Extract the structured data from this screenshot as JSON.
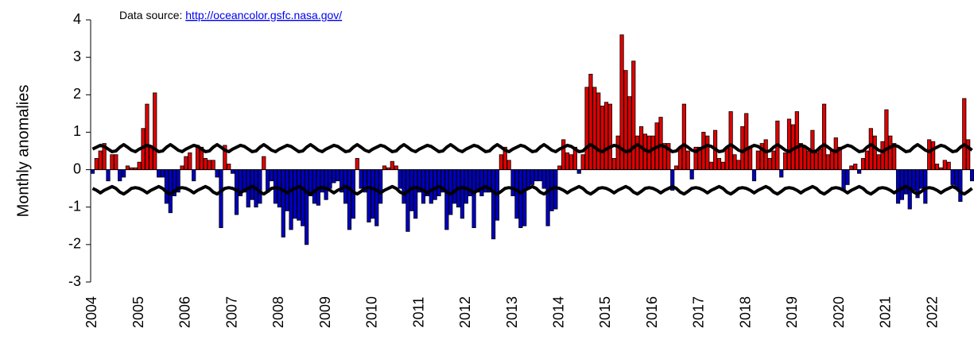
{
  "chart_data": {
    "type": "bar",
    "ylabel": "Monthly anomalies",
    "annotation": "Data source:",
    "annotation_link": "http://oceancolor.gsfc.nasa.gov/",
    "ylim": [
      -3,
      4
    ],
    "yticks": [
      -3,
      -2,
      -1,
      0,
      1,
      2,
      3,
      4
    ],
    "positive_color": "#e00000",
    "negative_color": "#0000c0",
    "categories": [
      "2004",
      null,
      null,
      null,
      null,
      null,
      null,
      null,
      null,
      null,
      null,
      null,
      "2005",
      null,
      null,
      null,
      null,
      null,
      null,
      null,
      null,
      null,
      null,
      null,
      "2006",
      null,
      null,
      null,
      null,
      null,
      null,
      null,
      null,
      null,
      null,
      null,
      "2007",
      null,
      null,
      null,
      null,
      null,
      null,
      null,
      null,
      null,
      null,
      null,
      "2008",
      null,
      null,
      null,
      null,
      null,
      null,
      null,
      null,
      null,
      null,
      null,
      "2009",
      null,
      null,
      null,
      null,
      null,
      null,
      null,
      null,
      null,
      null,
      null,
      "2010",
      null,
      null,
      null,
      null,
      null,
      null,
      null,
      null,
      null,
      null,
      null,
      "2011",
      null,
      null,
      null,
      null,
      null,
      null,
      null,
      null,
      null,
      null,
      null,
      "2012",
      null,
      null,
      null,
      null,
      null,
      null,
      null,
      null,
      null,
      null,
      null,
      "2013",
      null,
      null,
      null,
      null,
      null,
      null,
      null,
      null,
      null,
      null,
      null,
      "2014",
      null,
      null,
      null,
      null,
      null,
      null,
      null,
      null,
      null,
      null,
      null,
      "2015",
      null,
      null,
      null,
      null,
      null,
      null,
      null,
      null,
      null,
      null,
      null,
      "2016",
      null,
      null,
      null,
      null,
      null,
      null,
      null,
      null,
      null,
      null,
      null,
      "2017",
      null,
      null,
      null,
      null,
      null,
      null,
      null,
      null,
      null,
      null,
      null,
      "2018",
      null,
      null,
      null,
      null,
      null,
      null,
      null,
      null,
      null,
      null,
      null,
      "2019",
      null,
      null,
      null,
      null,
      null,
      null,
      null,
      null,
      null,
      null,
      null,
      "2020",
      null,
      null,
      null,
      null,
      null,
      null,
      null,
      null,
      null,
      null,
      null,
      "2021",
      null,
      null,
      null,
      null,
      null,
      null,
      null,
      null,
      null,
      null,
      null,
      "2022",
      null,
      null,
      null,
      null,
      null,
      null,
      null,
      null,
      null,
      null
    ],
    "values": [
      -0.1,
      0.3,
      0.5,
      0.7,
      -0.3,
      0.4,
      0.4,
      -0.3,
      -0.2,
      0.1,
      0.05,
      0.05,
      0.2,
      1.1,
      1.75,
      0.6,
      2.05,
      -0.2,
      -0.2,
      -0.9,
      -1.15,
      -0.7,
      -0.6,
      0.1,
      0.35,
      0.45,
      -0.3,
      0.65,
      0.6,
      0.3,
      0.25,
      0.25,
      -0.2,
      -1.55,
      0.65,
      0.15,
      -0.1,
      -1.2,
      -0.7,
      -0.6,
      -1.0,
      -0.8,
      -1.0,
      -0.9,
      0.35,
      -0.6,
      -0.3,
      -0.9,
      -1.0,
      -1.8,
      -1.1,
      -1.6,
      -1.3,
      -1.35,
      -1.5,
      -2.0,
      -0.7,
      -0.9,
      -0.95,
      -0.6,
      -0.8,
      -0.5,
      -0.35,
      -0.3,
      -0.6,
      -0.9,
      -1.6,
      -1.3,
      0.3,
      -0.5,
      -0.6,
      -1.4,
      -1.3,
      -1.5,
      -0.9,
      0.1,
      0.05,
      0.22,
      0.1,
      -0.5,
      -0.9,
      -1.65,
      -1.1,
      -1.3,
      -0.6,
      -0.9,
      -0.7,
      -0.9,
      -0.8,
      -0.7,
      -0.6,
      -1.6,
      -1.2,
      -0.9,
      -1.0,
      -1.3,
      -0.9,
      -0.7,
      -1.55,
      -0.6,
      -0.7,
      -0.6,
      -0.6,
      -1.85,
      -1.35,
      0.4,
      0.6,
      0.25,
      -0.7,
      -1.3,
      -1.55,
      -1.5,
      -0.5,
      -0.4,
      -0.3,
      -0.3,
      -0.5,
      -1.5,
      -1.1,
      -1.05,
      0.1,
      0.8,
      0.45,
      0.4,
      0.6,
      -0.1,
      0.4,
      2.2,
      2.55,
      2.2,
      2.05,
      1.7,
      1.8,
      1.75,
      0.3,
      0.9,
      3.6,
      2.65,
      1.95,
      2.9,
      0.9,
      1.15,
      0.95,
      0.9,
      0.9,
      1.25,
      1.4,
      0.7,
      0.7,
      -0.55,
      0.1,
      0.6,
      1.75,
      0.5,
      -0.25,
      0.6,
      0.6,
      1.0,
      0.9,
      0.2,
      1.05,
      0.3,
      0.2,
      0.6,
      1.55,
      0.4,
      0.25,
      1.15,
      1.5,
      0.6,
      -0.3,
      0.5,
      0.7,
      0.8,
      0.3,
      0.5,
      1.3,
      -0.2,
      0.45,
      1.35,
      1.2,
      1.55,
      0.7,
      0.6,
      0.5,
      1.05,
      0.45,
      0.55,
      1.75,
      0.4,
      0.5,
      0.85,
      0.6,
      -0.55,
      -0.4,
      0.1,
      0.15,
      -0.1,
      0.3,
      0.5,
      1.1,
      0.9,
      0.4,
      0.75,
      1.6,
      0.9,
      0.7,
      -0.9,
      -0.8,
      -0.65,
      -1.05,
      -0.55,
      -0.75,
      -0.5,
      -0.9,
      0.8,
      0.75,
      0.15,
      0.05,
      0.25,
      0.2,
      -0.4,
      -0.5,
      -0.85,
      1.9,
      0.8,
      -0.3
    ],
    "lines": [
      {
        "color": "#000000",
        "values": [
          0.55,
          0.6,
          0.65,
          0.62,
          0.55,
          0.48,
          0.5,
          0.6,
          0.67,
          0.6,
          0.52,
          0.48,
          0.55,
          0.6,
          0.65,
          0.62,
          0.55,
          0.48,
          0.5,
          0.6,
          0.67,
          0.6,
          0.52,
          0.48,
          0.55,
          0.6,
          0.65,
          0.62,
          0.55,
          0.48,
          0.5,
          0.6,
          0.67,
          0.6,
          0.52,
          0.48,
          0.55,
          0.6,
          0.65,
          0.62,
          0.55,
          0.48,
          0.5,
          0.6,
          0.67,
          0.6,
          0.52,
          0.48,
          0.55,
          0.6,
          0.65,
          0.62,
          0.55,
          0.48,
          0.5,
          0.6,
          0.67,
          0.6,
          0.52,
          0.48,
          0.55,
          0.6,
          0.65,
          0.62,
          0.55,
          0.48,
          0.5,
          0.6,
          0.67,
          0.6,
          0.52,
          0.48,
          0.55,
          0.6,
          0.65,
          0.62,
          0.55,
          0.48,
          0.5,
          0.6,
          0.67,
          0.6,
          0.52,
          0.48,
          0.55,
          0.6,
          0.65,
          0.62,
          0.55,
          0.48,
          0.5,
          0.6,
          0.67,
          0.6,
          0.52,
          0.48,
          0.55,
          0.6,
          0.65,
          0.62,
          0.55,
          0.48,
          0.5,
          0.6,
          0.67,
          0.6,
          0.52,
          0.48,
          0.55,
          0.6,
          0.65,
          0.62,
          0.55,
          0.48,
          0.5,
          0.6,
          0.67,
          0.6,
          0.52,
          0.48,
          0.55,
          0.6,
          0.65,
          0.62,
          0.55,
          0.48,
          0.5,
          0.6,
          0.67,
          0.6,
          0.52,
          0.48,
          0.55,
          0.6,
          0.65,
          0.62,
          0.55,
          0.48,
          0.5,
          0.6,
          0.67,
          0.6,
          0.52,
          0.48,
          0.55,
          0.6,
          0.65,
          0.62,
          0.55,
          0.48,
          0.5,
          0.6,
          0.67,
          0.6,
          0.52,
          0.48,
          0.55,
          0.6,
          0.65,
          0.62,
          0.55,
          0.48,
          0.5,
          0.6,
          0.67,
          0.6,
          0.52,
          0.48,
          0.55,
          0.6,
          0.65,
          0.62,
          0.55,
          0.48,
          0.5,
          0.6,
          0.67,
          0.6,
          0.52,
          0.48,
          0.55,
          0.6,
          0.65,
          0.62,
          0.55,
          0.48,
          0.5,
          0.6,
          0.67,
          0.6,
          0.52,
          0.48,
          0.55,
          0.6,
          0.65,
          0.62,
          0.55,
          0.48,
          0.5,
          0.6,
          0.67,
          0.6,
          0.52,
          0.48,
          0.55,
          0.6,
          0.65,
          0.62,
          0.55,
          0.48,
          0.5,
          0.6,
          0.67,
          0.6,
          0.52,
          0.48,
          0.55,
          0.6,
          0.65,
          0.62,
          0.55,
          0.48,
          0.5,
          0.6,
          0.67,
          0.6,
          0.52
        ]
      },
      {
        "color": "#000000",
        "values": [
          -0.5,
          -0.55,
          -0.62,
          -0.55,
          -0.5,
          -0.45,
          -0.5,
          -0.6,
          -0.65,
          -0.58,
          -0.5,
          -0.48,
          -0.5,
          -0.55,
          -0.62,
          -0.55,
          -0.5,
          -0.45,
          -0.5,
          -0.6,
          -0.65,
          -0.58,
          -0.5,
          -0.48,
          -0.5,
          -0.55,
          -0.62,
          -0.55,
          -0.5,
          -0.45,
          -0.5,
          -0.6,
          -0.65,
          -0.58,
          -0.5,
          -0.48,
          -0.5,
          -0.55,
          -0.62,
          -0.55,
          -0.5,
          -0.45,
          -0.5,
          -0.6,
          -0.65,
          -0.58,
          -0.5,
          -0.48,
          -0.5,
          -0.55,
          -0.62,
          -0.55,
          -0.5,
          -0.45,
          -0.5,
          -0.6,
          -0.65,
          -0.58,
          -0.5,
          -0.48,
          -0.5,
          -0.55,
          -0.62,
          -0.55,
          -0.5,
          -0.45,
          -0.5,
          -0.6,
          -0.65,
          -0.58,
          -0.5,
          -0.48,
          -0.5,
          -0.55,
          -0.62,
          -0.55,
          -0.5,
          -0.45,
          -0.5,
          -0.6,
          -0.65,
          -0.58,
          -0.5,
          -0.48,
          -0.5,
          -0.55,
          -0.62,
          -0.55,
          -0.5,
          -0.45,
          -0.5,
          -0.6,
          -0.65,
          -0.58,
          -0.5,
          -0.48,
          -0.5,
          -0.55,
          -0.62,
          -0.55,
          -0.5,
          -0.45,
          -0.5,
          -0.6,
          -0.65,
          -0.58,
          -0.5,
          -0.48,
          -0.5,
          -0.55,
          -0.62,
          -0.55,
          -0.5,
          -0.45,
          -0.5,
          -0.6,
          -0.65,
          -0.58,
          -0.5,
          -0.48,
          -0.5,
          -0.55,
          -0.62,
          -0.55,
          -0.5,
          -0.45,
          -0.5,
          -0.6,
          -0.65,
          -0.58,
          -0.5,
          -0.48,
          -0.5,
          -0.55,
          -0.62,
          -0.55,
          -0.5,
          -0.45,
          -0.5,
          -0.6,
          -0.65,
          -0.58,
          -0.5,
          -0.48,
          -0.5,
          -0.55,
          -0.62,
          -0.55,
          -0.5,
          -0.45,
          -0.5,
          -0.6,
          -0.65,
          -0.58,
          -0.5,
          -0.48,
          -0.5,
          -0.55,
          -0.62,
          -0.55,
          -0.5,
          -0.45,
          -0.5,
          -0.6,
          -0.65,
          -0.58,
          -0.5,
          -0.48,
          -0.5,
          -0.55,
          -0.62,
          -0.55,
          -0.5,
          -0.45,
          -0.5,
          -0.6,
          -0.65,
          -0.58,
          -0.5,
          -0.48,
          -0.5,
          -0.55,
          -0.62,
          -0.55,
          -0.5,
          -0.45,
          -0.5,
          -0.6,
          -0.65,
          -0.58,
          -0.5,
          -0.48,
          -0.5,
          -0.55,
          -0.62,
          -0.55,
          -0.5,
          -0.45,
          -0.5,
          -0.6,
          -0.65,
          -0.58,
          -0.5,
          -0.48,
          -0.5,
          -0.55,
          -0.62,
          -0.55,
          -0.5,
          -0.45,
          -0.5,
          -0.6,
          -0.65,
          -0.58,
          -0.5,
          -0.48,
          -0.5,
          -0.55,
          -0.62,
          -0.55,
          -0.5,
          -0.45,
          -0.5,
          -0.6,
          -0.65,
          -0.58,
          -0.5
        ]
      }
    ]
  }
}
